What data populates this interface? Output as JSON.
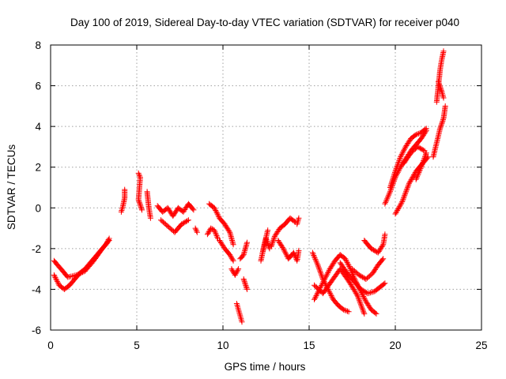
{
  "chart_data": {
    "type": "scatter",
    "title": "Day 100 of 2019, Sidereal Day-to-day VTEC variation (SDTVAR) for receiver p040",
    "xlabel": "GPS time / hours",
    "ylabel": "SDTVAR / TECUs",
    "xlim": [
      0,
      25
    ],
    "ylim": [
      -6,
      8
    ],
    "xticks": [
      0,
      5,
      10,
      15,
      20,
      25
    ],
    "yticks": [
      -6,
      -4,
      -2,
      0,
      2,
      4,
      6,
      8
    ],
    "xtick_labels": [
      "0",
      "5",
      "10",
      "15",
      "20",
      "25"
    ],
    "ytick_labels": [
      "-6",
      "-4",
      "-2",
      "0",
      "2",
      "4",
      "6",
      "8"
    ],
    "grid": true,
    "marker": "+",
    "marker_color": "#ff0000",
    "series": [
      {
        "name": "SDTVAR",
        "segments": [
          {
            "x": [
              0.2,
              0.5,
              0.8,
              1.1,
              1.4,
              1.7,
              2.0,
              2.3,
              2.6,
              2.9,
              3.2,
              3.4
            ],
            "y": [
              -3.3,
              -3.8,
              -4.0,
              -3.8,
              -3.5,
              -3.2,
              -3.0,
              -2.7,
              -2.4,
              -2.1,
              -1.8,
              -1.5
            ]
          },
          {
            "x": [
              0.2,
              0.6,
              1.0,
              1.5,
              2.0,
              2.5,
              3.0,
              3.4
            ],
            "y": [
              -2.6,
              -3.0,
              -3.4,
              -3.3,
              -3.1,
              -2.6,
              -2.0,
              -1.6
            ]
          },
          {
            "x": [
              4.1,
              4.2,
              4.3,
              4.3
            ],
            "y": [
              -0.2,
              0.1,
              0.5,
              0.9
            ]
          },
          {
            "x": [
              5.1,
              5.2,
              5.1,
              5.3
            ],
            "y": [
              1.7,
              1.5,
              0.4,
              -0.1
            ]
          },
          {
            "x": [
              5.6,
              5.7,
              5.8
            ],
            "y": [
              0.8,
              0.0,
              -0.5
            ]
          },
          {
            "x": [
              6.2,
              6.5,
              6.8,
              7.1,
              7.4,
              7.7,
              8.0,
              8.3
            ],
            "y": [
              0.1,
              -0.2,
              0.0,
              -0.4,
              0.0,
              -0.2,
              0.2,
              -0.1
            ]
          },
          {
            "x": [
              6.4,
              6.8,
              7.2,
              7.6,
              8.0
            ],
            "y": [
              -0.6,
              -0.9,
              -1.2,
              -0.8,
              -0.6
            ]
          },
          {
            "x": [
              8.4,
              8.5
            ],
            "y": [
              -1.0,
              -1.2
            ]
          },
          {
            "x": [
              9.1,
              9.3,
              9.5,
              9.7
            ],
            "y": [
              -1.3,
              -1.0,
              -1.1,
              -1.5
            ]
          },
          {
            "x": [
              9.2,
              9.5,
              9.8,
              10.1,
              10.4,
              10.6
            ],
            "y": [
              0.2,
              0.0,
              -0.5,
              -0.8,
              -1.2,
              -1.8
            ]
          },
          {
            "x": [
              9.8,
              10.1,
              10.4,
              10.6
            ],
            "y": [
              -1.6,
              -2.0,
              -2.3,
              -2.6
            ]
          },
          {
            "x": [
              10.5,
              10.7,
              10.9
            ],
            "y": [
              -3.0,
              -3.3,
              -3.0
            ]
          },
          {
            "x": [
              10.8,
              10.9,
              11.0,
              11.1
            ],
            "y": [
              -4.7,
              -5.0,
              -5.3,
              -5.6
            ]
          },
          {
            "x": [
              11.0,
              11.2,
              11.4
            ],
            "y": [
              -2.5,
              -2.3,
              -1.7
            ]
          },
          {
            "x": [
              11.2,
              11.4
            ],
            "y": [
              -3.5,
              -4.0
            ]
          },
          {
            "x": [
              12.2,
              12.4,
              12.6
            ],
            "y": [
              -2.6,
              -1.8,
              -1.1
            ]
          },
          {
            "x": [
              12.3,
              12.5,
              12.7
            ],
            "y": [
              -2.2,
              -1.5,
              -2.0
            ]
          },
          {
            "x": [
              12.8,
              13.0,
              13.3,
              13.6,
              13.9,
              14.2
            ],
            "y": [
              -1.9,
              -1.4,
              -1.0,
              -0.8,
              -0.5,
              -0.7
            ]
          },
          {
            "x": [
              13.2,
              13.5,
              13.8,
              14.1,
              14.3,
              14.4
            ],
            "y": [
              -1.6,
              -2.0,
              -2.5,
              -2.2,
              -2.6,
              -2.1
            ]
          },
          {
            "x": [
              14.3,
              14.4
            ],
            "y": [
              -0.8,
              -0.5
            ]
          },
          {
            "x": [
              15.2,
              15.5,
              15.8,
              16.1,
              16.4,
              16.7,
              17.0,
              17.3
            ],
            "y": [
              -2.2,
              -2.8,
              -3.5,
              -4.0,
              -4.5,
              -4.8,
              -5.0,
              -5.1
            ]
          },
          {
            "x": [
              15.3,
              15.6,
              15.9,
              16.2,
              16.5,
              16.8,
              17.1,
              17.4,
              17.7,
              18.0,
              18.3,
              18.6,
              18.9
            ],
            "y": [
              -4.5,
              -4.0,
              -3.5,
              -3.0,
              -2.6,
              -2.3,
              -2.5,
              -3.0,
              -3.6,
              -4.1,
              -4.6,
              -5.0,
              -5.2
            ]
          },
          {
            "x": [
              15.3,
              15.8,
              16.3,
              16.8,
              17.3,
              17.8,
              18.2
            ],
            "y": [
              -3.8,
              -4.2,
              -3.6,
              -3.0,
              -3.6,
              -4.3,
              -5.2
            ]
          },
          {
            "x": [
              16.8,
              17.2,
              17.6,
              18.0,
              18.4,
              18.8,
              19.1,
              19.4
            ],
            "y": [
              -2.7,
              -3.2,
              -3.6,
              -4.0,
              -4.2,
              -4.1,
              -3.9,
              -3.7
            ]
          },
          {
            "x": [
              17.5,
              17.9,
              18.3,
              18.7,
              19.0,
              19.3
            ],
            "y": [
              -3.0,
              -3.3,
              -3.5,
              -3.2,
              -2.8,
              -2.5
            ]
          },
          {
            "x": [
              18.2,
              18.6,
              19.0,
              19.3,
              19.4
            ],
            "y": [
              -1.6,
              -2.0,
              -2.2,
              -1.8,
              -1.3
            ]
          },
          {
            "x": [
              19.4,
              19.7,
              20.0,
              20.3,
              20.6,
              20.9,
              21.2,
              21.5,
              21.8
            ],
            "y": [
              0.2,
              0.8,
              1.5,
              2.0,
              2.4,
              2.8,
              3.1,
              3.4,
              3.8
            ]
          },
          {
            "x": [
              19.7,
              20.0,
              20.3,
              20.6,
              20.9,
              21.2,
              21.5,
              21.8
            ],
            "y": [
              1.0,
              1.8,
              2.5,
              3.0,
              3.4,
              3.6,
              3.7,
              3.9
            ]
          },
          {
            "x": [
              20.0,
              20.4,
              20.8,
              21.2,
              21.6,
              21.9
            ],
            "y": [
              -0.3,
              0.3,
              1.2,
              1.8,
              2.2,
              2.5
            ]
          },
          {
            "x": [
              20.5,
              20.9,
              21.3,
              21.7
            ],
            "y": [
              2.2,
              2.7,
              3.0,
              2.8
            ]
          },
          {
            "x": [
              21.2,
              21.5,
              21.8
            ],
            "y": [
              1.4,
              2.0,
              2.7
            ]
          },
          {
            "x": [
              22.2,
              22.4,
              22.6,
              22.8,
              22.9
            ],
            "y": [
              2.5,
              3.2,
              3.9,
              4.4,
              5.0
            ]
          },
          {
            "x": [
              22.4,
              22.5,
              22.6,
              22.7,
              22.8
            ],
            "y": [
              5.2,
              6.0,
              6.8,
              7.3,
              7.7
            ]
          },
          {
            "x": [
              22.5,
              22.7,
              22.8
            ],
            "y": [
              6.2,
              5.7,
              5.4
            ]
          }
        ]
      }
    ]
  }
}
